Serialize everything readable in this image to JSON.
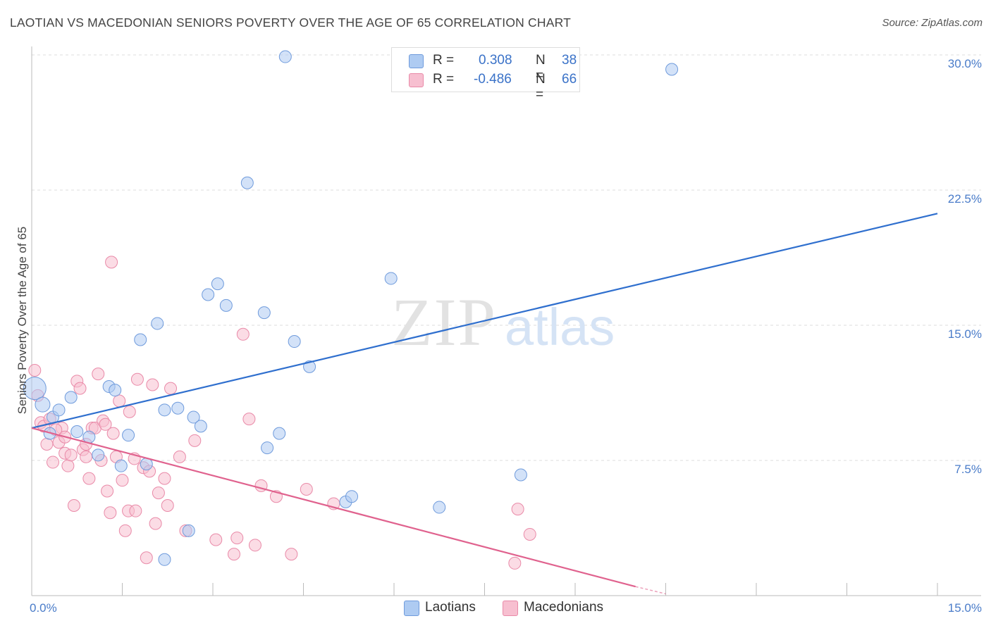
{
  "title": "LAOTIAN VS MACEDONIAN SENIORS POVERTY OVER THE AGE OF 65 CORRELATION CHART",
  "source": "Source: ZipAtlas.com",
  "watermark": {
    "zip": "ZIP",
    "atlas": "atlas"
  },
  "colors": {
    "laotian_fill": "#aecbf2",
    "laotian_stroke": "#6f9bdc",
    "laotian_line": "#2f6fce",
    "macedonian_fill": "#f7bfd0",
    "macedonian_stroke": "#e98aa8",
    "macedonian_line": "#e0628e",
    "tick_label": "#4a7cc9",
    "grid": "#dddddd"
  },
  "legend": {
    "rows": [
      {
        "r_label": "R =",
        "r_value": "0.308",
        "n_label": "N =",
        "n_value": "38"
      },
      {
        "r_label": "R =",
        "r_value": "-0.486",
        "n_label": "N =",
        "n_value": "66"
      }
    ]
  },
  "bottom_legend": {
    "laotians": "Laotians",
    "macedonians": "Macedonians"
  },
  "chart_data": {
    "type": "scatter",
    "title": "LAOTIAN VS MACEDONIAN SENIORS POVERTY OVER THE AGE OF 65 CORRELATION CHART",
    "xlabel": "",
    "ylabel": "Seniors Poverty Over the Age of 65",
    "xlim": [
      0,
      15
    ],
    "ylim": [
      0,
      30
    ],
    "x_tick_labels": [
      "0.0%",
      "15.0%"
    ],
    "y_ticks": [
      7.5,
      15.0,
      22.5,
      30.0
    ],
    "y_tick_labels": [
      "7.5%",
      "15.0%",
      "22.5%",
      "30.0%"
    ],
    "grid": true,
    "legend_position": "top-center",
    "series": [
      {
        "name": "Laotians",
        "r": 0.308,
        "n": 38,
        "trend": {
          "x": [
            0.0,
            15.0
          ],
          "y": [
            9.3,
            21.2
          ]
        },
        "points": [
          [
            0.05,
            11.5
          ],
          [
            0.18,
            10.6
          ],
          [
            0.35,
            9.9
          ],
          [
            0.45,
            10.3
          ],
          [
            0.65,
            11.0
          ],
          [
            0.75,
            9.1
          ],
          [
            0.95,
            8.8
          ],
          [
            1.1,
            7.8
          ],
          [
            1.28,
            11.6
          ],
          [
            1.38,
            11.4
          ],
          [
            1.48,
            7.2
          ],
          [
            1.6,
            8.9
          ],
          [
            1.8,
            14.2
          ],
          [
            1.9,
            7.3
          ],
          [
            2.08,
            15.1
          ],
          [
            2.2,
            10.3
          ],
          [
            2.42,
            10.4
          ],
          [
            2.6,
            3.6
          ],
          [
            2.68,
            9.9
          ],
          [
            2.8,
            9.4
          ],
          [
            2.92,
            16.7
          ],
          [
            3.08,
            17.3
          ],
          [
            3.22,
            16.1
          ],
          [
            3.57,
            22.9
          ],
          [
            3.85,
            15.7
          ],
          [
            3.9,
            8.2
          ],
          [
            4.1,
            9.0
          ],
          [
            4.2,
            29.9
          ],
          [
            4.35,
            14.1
          ],
          [
            4.6,
            12.7
          ],
          [
            5.2,
            5.2
          ],
          [
            5.3,
            5.5
          ],
          [
            5.95,
            17.6
          ],
          [
            6.75,
            4.9
          ],
          [
            8.1,
            6.7
          ],
          [
            10.6,
            29.2
          ],
          [
            2.2,
            2.0
          ],
          [
            0.3,
            9.0
          ]
        ]
      },
      {
        "name": "Macedonians",
        "r": -0.486,
        "n": 66,
        "trend": {
          "x": [
            0.0,
            10.0
          ],
          "y": [
            9.3,
            0.5
          ]
        },
        "trend_dashed": {
          "x": [
            10.0,
            10.5
          ],
          "y": [
            0.5,
            0.1
          ]
        },
        "points": [
          [
            0.05,
            12.5
          ],
          [
            0.1,
            11.1
          ],
          [
            0.15,
            9.6
          ],
          [
            0.2,
            9.4
          ],
          [
            0.25,
            8.4
          ],
          [
            0.3,
            9.8
          ],
          [
            0.35,
            7.4
          ],
          [
            0.45,
            8.5
          ],
          [
            0.5,
            9.3
          ],
          [
            0.55,
            7.9
          ],
          [
            0.6,
            7.2
          ],
          [
            0.65,
            7.8
          ],
          [
            0.7,
            5.0
          ],
          [
            0.75,
            11.9
          ],
          [
            0.8,
            11.5
          ],
          [
            0.85,
            8.1
          ],
          [
            0.9,
            7.7
          ],
          [
            0.95,
            6.5
          ],
          [
            1.0,
            9.3
          ],
          [
            1.05,
            9.3
          ],
          [
            1.1,
            12.3
          ],
          [
            1.15,
            7.5
          ],
          [
            1.18,
            9.7
          ],
          [
            1.22,
            9.5
          ],
          [
            1.25,
            5.8
          ],
          [
            1.3,
            4.6
          ],
          [
            1.32,
            18.5
          ],
          [
            1.4,
            7.7
          ],
          [
            1.45,
            10.8
          ],
          [
            1.5,
            6.4
          ],
          [
            1.55,
            3.6
          ],
          [
            1.6,
            4.7
          ],
          [
            1.62,
            10.2
          ],
          [
            1.7,
            7.6
          ],
          [
            1.72,
            4.7
          ],
          [
            1.75,
            12.0
          ],
          [
            1.85,
            7.1
          ],
          [
            1.9,
            2.1
          ],
          [
            2.0,
            11.7
          ],
          [
            2.05,
            4.0
          ],
          [
            2.1,
            5.7
          ],
          [
            2.2,
            6.5
          ],
          [
            2.25,
            5.0
          ],
          [
            2.3,
            11.5
          ],
          [
            2.55,
            3.6
          ],
          [
            3.05,
            3.1
          ],
          [
            3.35,
            2.3
          ],
          [
            3.4,
            3.2
          ],
          [
            3.5,
            14.5
          ],
          [
            3.6,
            9.8
          ],
          [
            3.7,
            2.8
          ],
          [
            3.8,
            6.1
          ],
          [
            4.05,
            5.5
          ],
          [
            4.3,
            2.3
          ],
          [
            4.55,
            5.9
          ],
          [
            5.0,
            5.1
          ],
          [
            8.0,
            1.8
          ],
          [
            8.05,
            4.8
          ],
          [
            8.25,
            3.4
          ],
          [
            0.4,
            9.2
          ],
          [
            0.55,
            8.8
          ],
          [
            0.9,
            8.4
          ],
          [
            1.35,
            9.0
          ],
          [
            1.95,
            6.9
          ],
          [
            2.45,
            7.7
          ],
          [
            2.7,
            8.6
          ]
        ]
      }
    ]
  }
}
